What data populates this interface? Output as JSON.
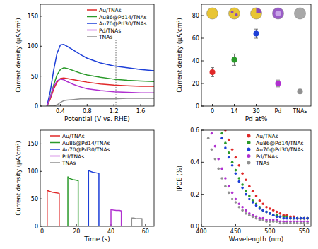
{
  "chart_data": [
    {
      "type": "line",
      "x_label": "Potential (V vs. RHE)",
      "y_label": "Current density (μA/cm²)",
      "xlim": [
        0.1,
        1.8
      ],
      "xticks": [
        0.4,
        0.8,
        1.2,
        1.6
      ],
      "ylim": [
        0,
        170
      ],
      "yticks": [
        0,
        50,
        100,
        150
      ],
      "grid": false,
      "legend": "upper right",
      "vline": 1.23,
      "x": [
        0.2,
        0.25,
        0.3,
        0.35,
        0.4,
        0.45,
        0.5,
        0.6,
        0.7,
        0.8,
        1.0,
        1.2,
        1.4,
        1.6,
        1.8
      ],
      "series": [
        {
          "name": "Au/TNAs",
          "color": "#e02828",
          "values": [
            0,
            12,
            28,
            40,
            46,
            47,
            46,
            44,
            42,
            40,
            37,
            35,
            34,
            33,
            33
          ]
        },
        {
          "name": "Au86@Pd14/TNAs",
          "color": "#2a9a2a",
          "values": [
            0,
            15,
            35,
            52,
            61,
            64,
            63,
            59,
            55,
            52,
            48,
            45,
            43,
            42,
            41
          ]
        },
        {
          "name": "Au70@Pd30/TNAs",
          "color": "#1d3fd8",
          "values": [
            0,
            25,
            60,
            88,
            102,
            103,
            100,
            93,
            86,
            80,
            72,
            67,
            64,
            61,
            59
          ]
        },
        {
          "name": "Pd/TNAs",
          "color": "#b030d0",
          "values": [
            0,
            15,
            32,
            42,
            45,
            44,
            41,
            36,
            32,
            29,
            26,
            24,
            23,
            22,
            22
          ]
        },
        {
          "name": "TNAs",
          "color": "#909090",
          "values": [
            0,
            0,
            0,
            2,
            6,
            9,
            10,
            11,
            12,
            12,
            12,
            12,
            13,
            13,
            13
          ]
        }
      ]
    },
    {
      "type": "scatter",
      "x_label": "Pd at%",
      "y_label": "Current density (μA/cm²)",
      "categories": [
        "0",
        "14",
        "30",
        "Pd",
        "TNAs"
      ],
      "values": [
        30,
        41,
        64,
        20,
        13
      ],
      "errors": [
        4,
        5,
        4,
        3,
        1
      ],
      "colors": [
        "#e02828",
        "#2a9a2a",
        "#1d3fd8",
        "#b030d0",
        "#909090"
      ],
      "marker": "circle",
      "ylim": [
        0,
        90
      ],
      "yticks": [
        0,
        20,
        40,
        60,
        80
      ],
      "grid": false
    },
    {
      "type": "line",
      "x_label": "Time (s)",
      "y_label": "Current density (μA/cm²)",
      "xlim": [
        -1,
        65
      ],
      "xticks": [
        0,
        20,
        40,
        60
      ],
      "ylim": [
        0,
        175
      ],
      "yticks": [
        0,
        50,
        100,
        150
      ],
      "grid": false,
      "legend": "upper left",
      "series": [
        {
          "name": "Au/TNAs",
          "color": "#e02828",
          "x": [
            1,
            3,
            3,
            4,
            6,
            8,
            10,
            10,
            12
          ],
          "values": [
            0,
            0,
            66,
            64,
            62,
            61,
            60,
            0,
            0
          ]
        },
        {
          "name": "Au86@Pd14/TNAs",
          "color": "#2a9a2a",
          "x": [
            12,
            15,
            15,
            16,
            18,
            20,
            21,
            21,
            24
          ],
          "values": [
            0,
            0,
            90,
            87,
            85,
            84,
            83,
            0,
            0
          ]
        },
        {
          "name": "Au70@Pd30/TNAs",
          "color": "#1d3fd8",
          "x": [
            25,
            27,
            27,
            28,
            30,
            32,
            33,
            33,
            37
          ],
          "values": [
            0,
            0,
            102,
            100,
            98,
            97,
            96,
            0,
            0
          ]
        },
        {
          "name": "Pd/TNAs",
          "color": "#b030d0",
          "x": [
            38,
            40,
            40,
            41,
            43,
            45,
            46,
            46,
            50
          ],
          "values": [
            0,
            0,
            31,
            30,
            29,
            29,
            28,
            0,
            0
          ]
        },
        {
          "name": "TNAs",
          "color": "#909090",
          "x": [
            50,
            52,
            52,
            53,
            55,
            57,
            58,
            58,
            62
          ],
          "values": [
            0,
            0,
            15,
            15,
            14,
            14,
            14,
            0,
            0
          ]
        }
      ]
    },
    {
      "type": "scatter",
      "x_label": "Wavelength (nm)",
      "y_label": "IPCE (%)",
      "marker": "circle",
      "xlim": [
        400,
        560
      ],
      "xticks": [
        400,
        450,
        500,
        550
      ],
      "ylim": [
        0,
        0.6
      ],
      "yticks": [
        {
          "value": 0,
          "label": "0.0"
        },
        0.2,
        0.4,
        0.6
      ],
      "grid": false,
      "legend": "upper right",
      "series": [
        {
          "name": "Au/TNAs",
          "color": "#e02828",
          "x": [
            435,
            440,
            445,
            450,
            455,
            460,
            465,
            470,
            475,
            480,
            485,
            490,
            495,
            500,
            505,
            510,
            515,
            520,
            525,
            530,
            535,
            540,
            545,
            550,
            555
          ],
          "values": [
            0.6,
            0.54,
            0.48,
            0.43,
            0.38,
            0.33,
            0.29,
            0.25,
            0.22,
            0.19,
            0.16,
            0.14,
            0.12,
            0.11,
            0.1,
            0.09,
            0.08,
            0.07,
            0.07,
            0.06,
            0.06,
            0.05,
            0.05,
            0.05,
            0.05
          ]
        },
        {
          "name": "Au86@Pd14/TNAs",
          "color": "#2a9a2a",
          "x": [
            430,
            435,
            440,
            445,
            450,
            455,
            460,
            465,
            470,
            475,
            480,
            485,
            490,
            495,
            500,
            505,
            510,
            515,
            520,
            525,
            530,
            535,
            540,
            545,
            550,
            555
          ],
          "values": [
            0.58,
            0.52,
            0.46,
            0.4,
            0.35,
            0.3,
            0.26,
            0.22,
            0.19,
            0.16,
            0.14,
            0.12,
            0.1,
            0.09,
            0.08,
            0.07,
            0.07,
            0.06,
            0.06,
            0.06,
            0.05,
            0.05,
            0.05,
            0.05,
            0.05,
            0.05
          ]
        },
        {
          "name": "Au70@Pd30/TNAs",
          "color": "#1d3fd8",
          "x": [
            430,
            435,
            440,
            445,
            450,
            455,
            460,
            465,
            470,
            475,
            480,
            485,
            490,
            495,
            500,
            505,
            510,
            515,
            520,
            525,
            530,
            535,
            540,
            545,
            550,
            555
          ],
          "values": [
            0.55,
            0.49,
            0.43,
            0.38,
            0.33,
            0.28,
            0.24,
            0.2,
            0.17,
            0.15,
            0.13,
            0.11,
            0.1,
            0.09,
            0.08,
            0.07,
            0.06,
            0.06,
            0.05,
            0.05,
            0.05,
            0.05,
            0.05,
            0.05,
            0.05,
            0.05
          ]
        },
        {
          "name": "Pd/TNAs",
          "color": "#b030d0",
          "x": [
            415,
            420,
            425,
            430,
            435,
            440,
            445,
            450,
            455,
            460,
            465,
            470,
            475,
            480,
            485,
            490,
            495,
            500,
            505,
            510,
            515,
            520,
            525,
            530,
            535,
            540,
            545,
            550,
            555
          ],
          "values": [
            0.58,
            0.5,
            0.42,
            0.36,
            0.3,
            0.25,
            0.21,
            0.17,
            0.14,
            0.12,
            0.1,
            0.08,
            0.07,
            0.06,
            0.05,
            0.05,
            0.04,
            0.04,
            0.04,
            0.04,
            0.03,
            0.03,
            0.03,
            0.03,
            0.03,
            0.03,
            0.03,
            0.03,
            0.03
          ]
        },
        {
          "name": "TNAs",
          "color": "#909090",
          "x": [
            410,
            415,
            420,
            425,
            430,
            435,
            440,
            445,
            450,
            455,
            460,
            465,
            470,
            475,
            480,
            485,
            490,
            495,
            500,
            505,
            510,
            515,
            520,
            525,
            530,
            535,
            540,
            545,
            550,
            555
          ],
          "values": [
            0.55,
            0.48,
            0.42,
            0.36,
            0.3,
            0.25,
            0.21,
            0.17,
            0.15,
            0.12,
            0.1,
            0.08,
            0.07,
            0.06,
            0.05,
            0.04,
            0.04,
            0.03,
            0.03,
            0.03,
            0.03,
            0.02,
            0.02,
            0.02,
            0.02,
            0.02,
            0.02,
            0.02,
            0.02,
            0.02
          ]
        }
      ]
    }
  ]
}
